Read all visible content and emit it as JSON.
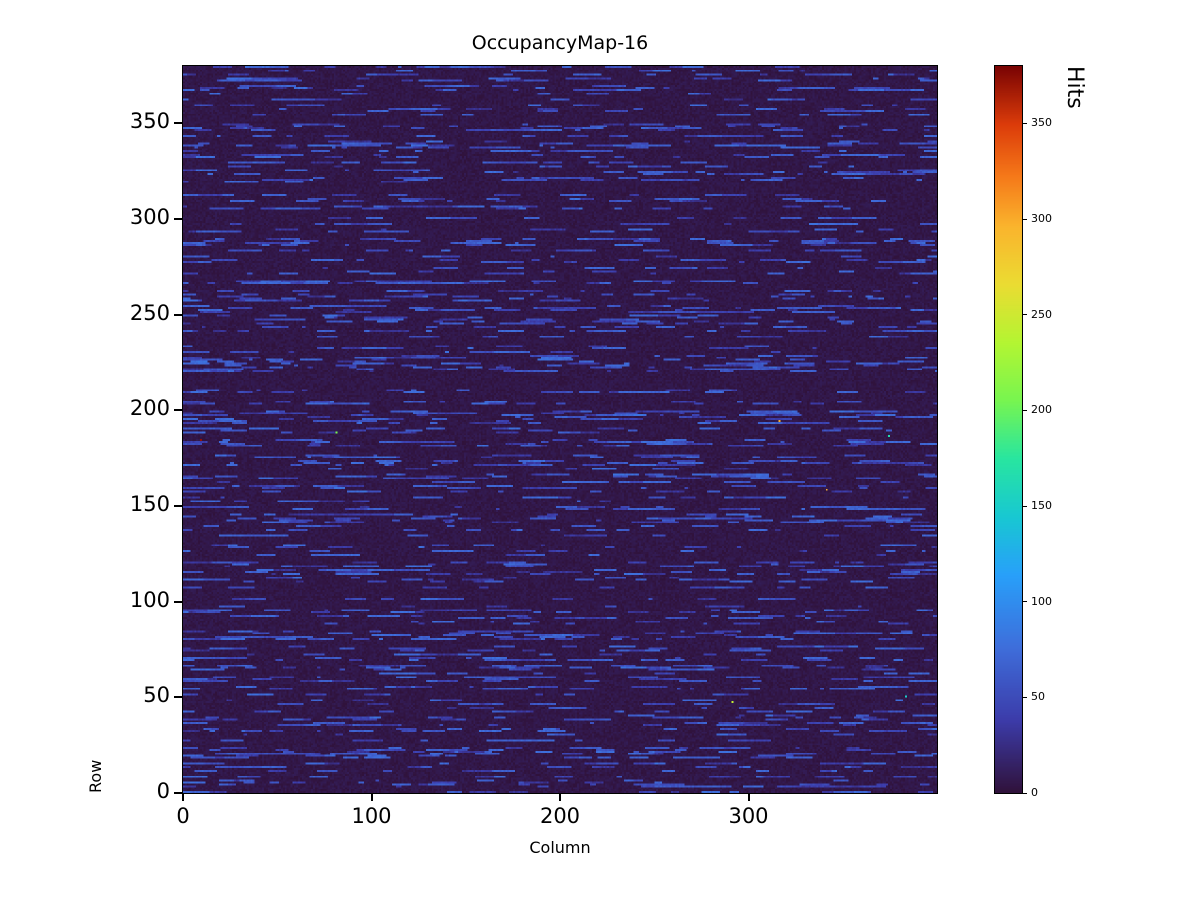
{
  "chart_data": {
    "type": "heatmap",
    "title": "OccupancyMap-16",
    "xlabel": "Column",
    "ylabel": "Row",
    "colorbar_label": "Hits",
    "x_range": [
      0,
      400
    ],
    "y_range": [
      0,
      380
    ],
    "x_ticks": [
      0,
      100,
      200,
      300
    ],
    "y_ticks": [
      0,
      50,
      100,
      150,
      200,
      250,
      300,
      350
    ],
    "colorbar_ticks": [
      0,
      50,
      100,
      150,
      200,
      250,
      300,
      350
    ],
    "vmin": 0,
    "vmax": 380,
    "colormap": "turbo",
    "grid": {
      "cols": 400,
      "rows": 380
    },
    "legend": "none",
    "grid_lines": "off",
    "pattern": {
      "description": "Mostly near-zero background (dark purple/navy) with many horizontal dashed streaks of moderate hit counts (blue, ~30-75 hits) on roughly half of the rows, plus a few isolated hot pixels (yellow/orange specks) up to the colormap maximum.",
      "seed": 16,
      "background_max": 9,
      "noisy_row_fraction": 0.5,
      "streak_value_range": [
        28,
        75
      ],
      "streak_probability": 0.4,
      "hot_pixel_count": 7,
      "hot_pixel_value_range": [
        130,
        380
      ]
    },
    "turbo_stops": [
      [
        0.0,
        "#30123b"
      ],
      [
        0.1,
        "#3c3caa"
      ],
      [
        0.2,
        "#3e6edb"
      ],
      [
        0.3,
        "#28a0fa"
      ],
      [
        0.38,
        "#18c8d2"
      ],
      [
        0.46,
        "#28e6a0"
      ],
      [
        0.54,
        "#78f550"
      ],
      [
        0.62,
        "#b4f532"
      ],
      [
        0.7,
        "#ebdc32"
      ],
      [
        0.78,
        "#fab42d"
      ],
      [
        0.85,
        "#f57819"
      ],
      [
        0.92,
        "#dc3c0a"
      ],
      [
        1.0,
        "#7a0403"
      ]
    ]
  }
}
